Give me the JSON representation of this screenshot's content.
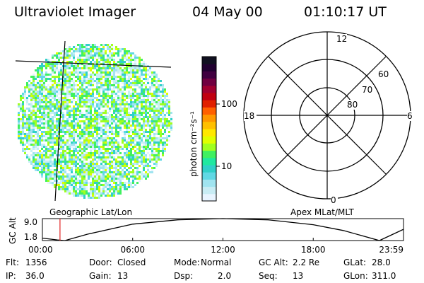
{
  "header": {
    "instrument": "Ultraviolet Imager",
    "date": "04 May 00",
    "time": "01:10:17 UT"
  },
  "image_panel": {
    "label": "Geographic Lat/Lon"
  },
  "colorbar": {
    "unit_label": "photon cm⁻²s⁻¹",
    "ticks": [
      "100",
      "10"
    ],
    "colors": [
      "#e8f4ff",
      "#c8ecf4",
      "#a0e4f0",
      "#60d8e4",
      "#30d0c8",
      "#20e8a0",
      "#40f060",
      "#a0ff20",
      "#e0ff00",
      "#ffe800",
      "#ffc000",
      "#ff9800",
      "#ff6000",
      "#e02000",
      "#c00010",
      "#a00030",
      "#700040",
      "#400040",
      "#200030",
      "#101020"
    ]
  },
  "polar_panel": {
    "label": "Apex MLat/MLT",
    "mlt_labels": {
      "top": "12",
      "left": "18",
      "right": "6",
      "bottom": "0"
    },
    "lat_labels": [
      "60",
      "70",
      "80"
    ]
  },
  "chart_data": {
    "type": "line",
    "title": "",
    "ylabel": "GC Alt",
    "xlabel": "",
    "x_tick_labels": [
      "00:00",
      "06:00",
      "12:00",
      "18:00",
      "23:59"
    ],
    "y_tick_labels": [
      "9.0",
      "1.8"
    ],
    "x_hours": [
      0,
      1.0,
      1.5,
      3,
      6,
      9,
      12,
      15,
      18,
      20,
      22.4,
      24
    ],
    "series": [
      {
        "values": [
          2.6,
          2.0,
          1.6,
          3.9,
          7.2,
          8.6,
          9.0,
          8.6,
          7.0,
          5.1,
          1.6,
          5.5
        ]
      }
    ],
    "ylim": [
      1.8,
      9.0
    ],
    "xlim": [
      0,
      24
    ],
    "current_time_hours": 1.17,
    "current_marker_color": "#e02020"
  },
  "info": {
    "row1": [
      {
        "label": "Flt:",
        "value": "1356"
      },
      {
        "label": "Door:",
        "value": "Closed"
      },
      {
        "label": "Mode:",
        "value": "Normal"
      },
      {
        "label": "GC Alt:",
        "value": "2.2 Re"
      },
      {
        "label": "GLat:",
        "value": "28.0"
      }
    ],
    "row2": [
      {
        "label": "IP:",
        "value": "36.0"
      },
      {
        "label": "Gain:",
        "value": "13"
      },
      {
        "label": "Dsp:",
        "value": "2.0"
      },
      {
        "label": "Seq:",
        "value": "13"
      },
      {
        "label": "GLon:",
        "value": "311.0"
      }
    ]
  }
}
